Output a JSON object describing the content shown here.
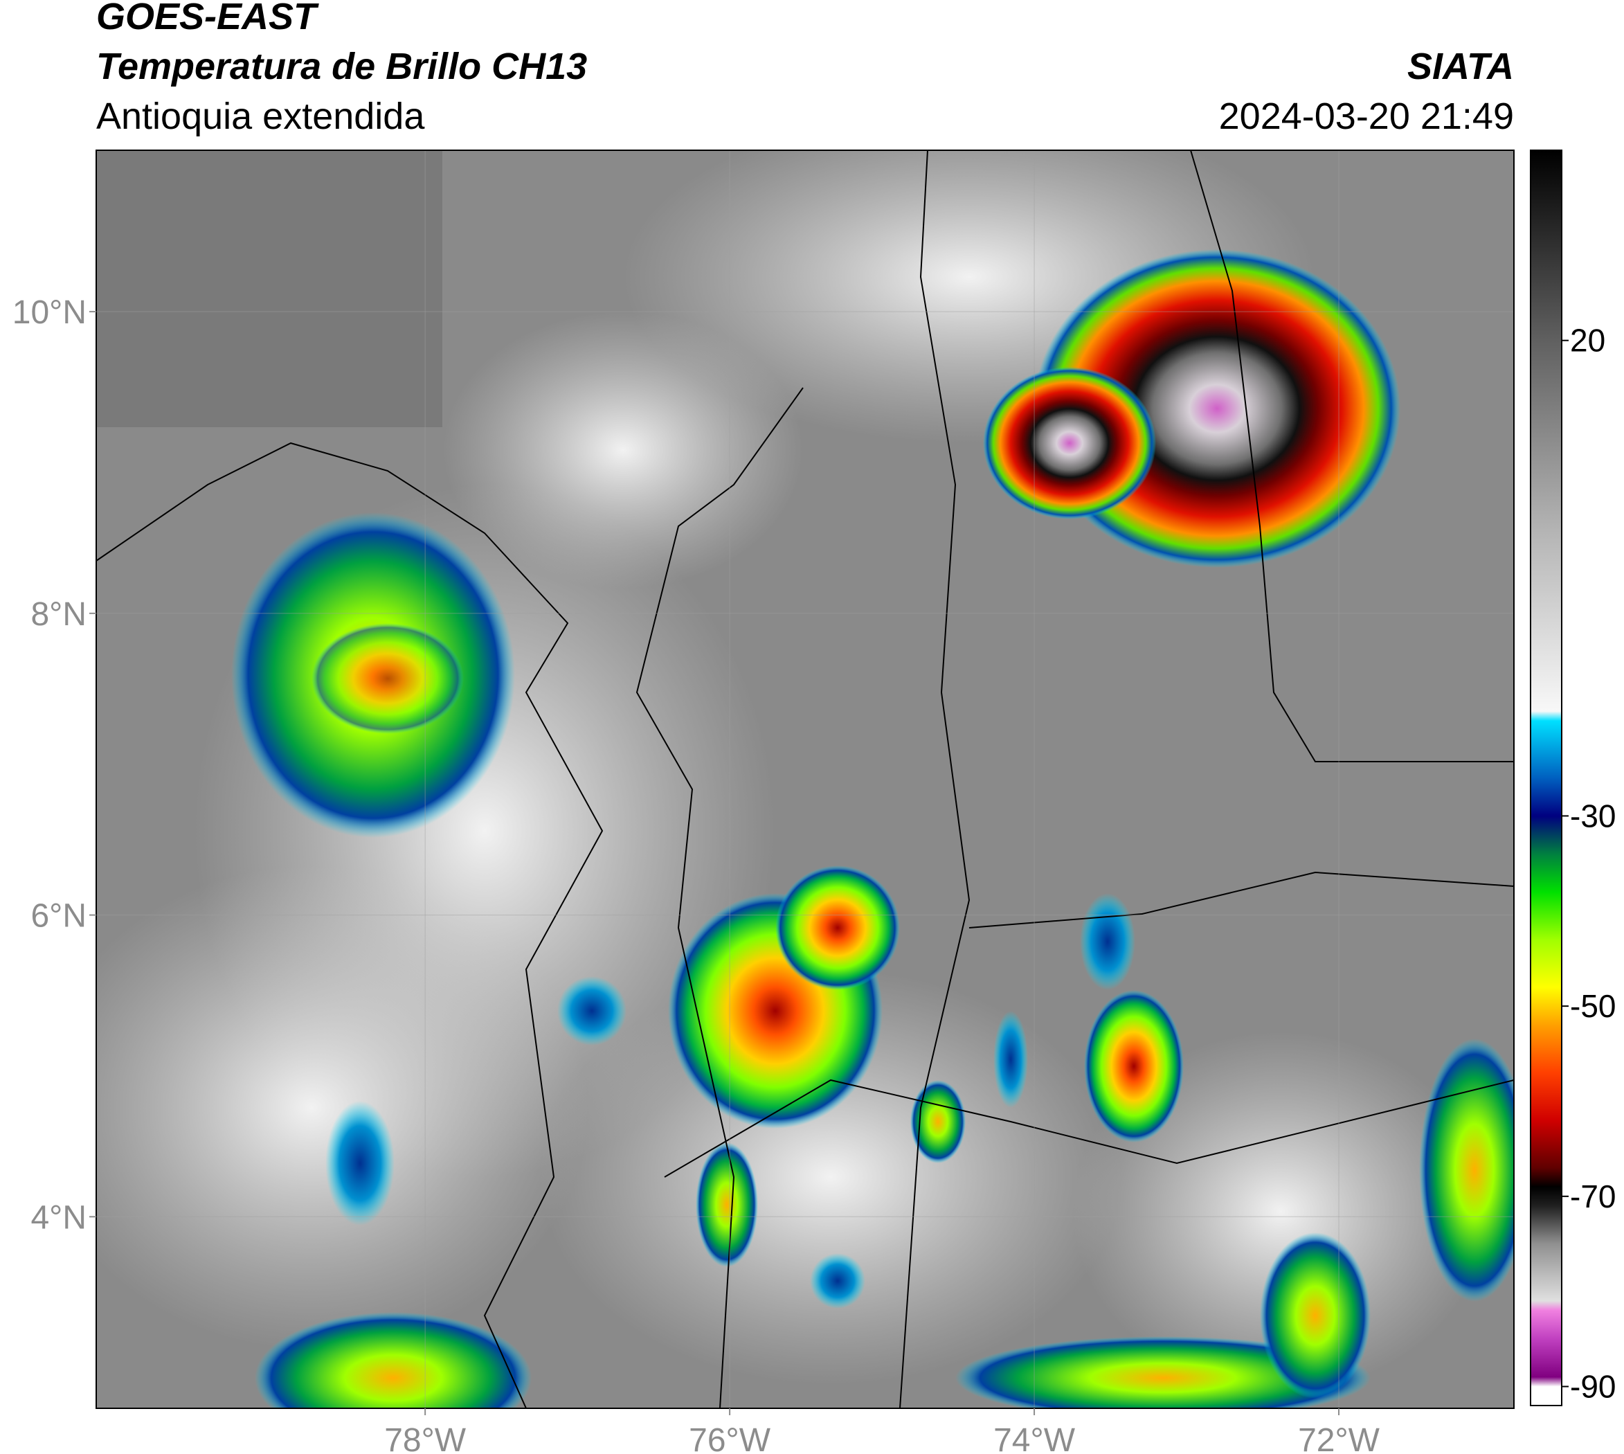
{
  "header": {
    "title": "GOES-EAST",
    "subtitle": "Temperatura de Brillo CH13",
    "region": "Antioquia extendida",
    "source": "SIATA",
    "datetime": "2024-03-20 21:49"
  },
  "map": {
    "lonlim": [
      -80.16,
      -70.85
    ],
    "latlim": [
      2.73,
      11.07
    ],
    "lonticks": [
      {
        "value": -78,
        "label": "78°W"
      },
      {
        "value": -76,
        "label": "76°W"
      },
      {
        "value": -74,
        "label": "74°W"
      },
      {
        "value": -72,
        "label": "72°W"
      }
    ],
    "latticks": [
      {
        "value": 10,
        "label": "10°N"
      },
      {
        "value": 8,
        "label": "8°N"
      },
      {
        "value": 6,
        "label": "6°N"
      },
      {
        "value": 4,
        "label": "4°N"
      }
    ]
  },
  "colorbar": {
    "clim": [
      -92,
      40
    ],
    "ticks": [
      20,
      -30,
      -50,
      -70,
      -90
    ],
    "stops": [
      {
        "value": 40,
        "color": "#000000"
      },
      {
        "value": 20,
        "color": "#606060"
      },
      {
        "value": 0,
        "color": "#b4b4b4"
      },
      {
        "value": -19,
        "color": "#f8f8f8"
      },
      {
        "value": -20,
        "color": "#00e0ff"
      },
      {
        "value": -26,
        "color": "#0060c0"
      },
      {
        "value": -30,
        "color": "#000080"
      },
      {
        "value": -34,
        "color": "#008040"
      },
      {
        "value": -38,
        "color": "#00e000"
      },
      {
        "value": -43,
        "color": "#a0ff00"
      },
      {
        "value": -48,
        "color": "#ffff00"
      },
      {
        "value": -52,
        "color": "#ffa000"
      },
      {
        "value": -57,
        "color": "#ff4000"
      },
      {
        "value": -62,
        "color": "#d00000"
      },
      {
        "value": -67,
        "color": "#600000"
      },
      {
        "value": -69,
        "color": "#000000"
      },
      {
        "value": -71,
        "color": "#202020"
      },
      {
        "value": -75,
        "color": "#909090"
      },
      {
        "value": -81,
        "color": "#e0e0e0"
      },
      {
        "value": -82,
        "color": "#f080e0"
      },
      {
        "value": -85,
        "color": "#c040c0"
      },
      {
        "value": -89,
        "color": "#800080"
      },
      {
        "value": -90,
        "color": "#ffffff"
      }
    ]
  }
}
